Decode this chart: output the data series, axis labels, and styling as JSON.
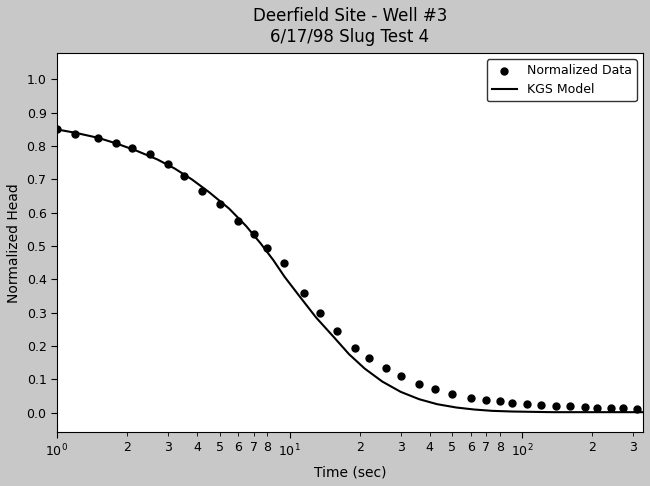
{
  "title_line1": "Deerfield Site - Well #3",
  "title_line2": "6/17/98 Slug Test 4",
  "xlabel": "Time (sec)",
  "ylabel": "Normalized Head",
  "xlim": [
    1.0,
    330
  ],
  "ylim": [
    -0.06,
    1.08
  ],
  "data_points_x": [
    1.0,
    1.2,
    1.5,
    1.8,
    2.1,
    2.5,
    3.0,
    3.5,
    4.2,
    5.0,
    6.0,
    7.0,
    8.0,
    9.5,
    11.5,
    13.5,
    16.0,
    19.0,
    22.0,
    26.0,
    30.0,
    36.0,
    42.0,
    50.0,
    60.0,
    70.0,
    80.0,
    90.0,
    105.0,
    120.0,
    140.0,
    160.0,
    185.0,
    210.0,
    240.0,
    270.0,
    310.0
  ],
  "data_points_y": [
    0.85,
    0.835,
    0.825,
    0.81,
    0.795,
    0.775,
    0.745,
    0.71,
    0.665,
    0.625,
    0.575,
    0.535,
    0.495,
    0.45,
    0.36,
    0.3,
    0.245,
    0.195,
    0.165,
    0.135,
    0.11,
    0.085,
    0.07,
    0.055,
    0.045,
    0.038,
    0.034,
    0.03,
    0.027,
    0.024,
    0.021,
    0.019,
    0.017,
    0.015,
    0.014,
    0.013,
    0.012
  ],
  "model_x": [
    1.0,
    1.2,
    1.5,
    1.8,
    2.2,
    2.7,
    3.2,
    3.8,
    4.5,
    5.5,
    6.5,
    7.5,
    8.5,
    9.5,
    11.0,
    13.0,
    15.5,
    18.0,
    21.0,
    25.0,
    30.0,
    36.0,
    43.0,
    52.0,
    62.0,
    74.0,
    90.0,
    110.0,
    135.0,
    165.0,
    200.0,
    250.0,
    310.0,
    330.0
  ],
  "model_y": [
    0.85,
    0.84,
    0.825,
    0.808,
    0.786,
    0.76,
    0.733,
    0.7,
    0.662,
    0.612,
    0.56,
    0.508,
    0.458,
    0.408,
    0.35,
    0.285,
    0.226,
    0.175,
    0.132,
    0.093,
    0.062,
    0.04,
    0.025,
    0.015,
    0.009,
    0.005,
    0.003,
    0.002,
    0.001,
    0.001,
    0.001,
    0.001,
    0.001,
    0.001
  ],
  "dot_color": "black",
  "line_color": "black",
  "dot_size": 5,
  "line_width": 1.5,
  "legend_loc": "upper right",
  "fig_bg_color": "#c8c8c8",
  "plot_bg_color": "white",
  "title_fontsize": 12,
  "axis_label_fontsize": 10,
  "tick_label_fontsize": 9,
  "figwidth": 6.5,
  "figheight": 4.86,
  "dpi": 100
}
